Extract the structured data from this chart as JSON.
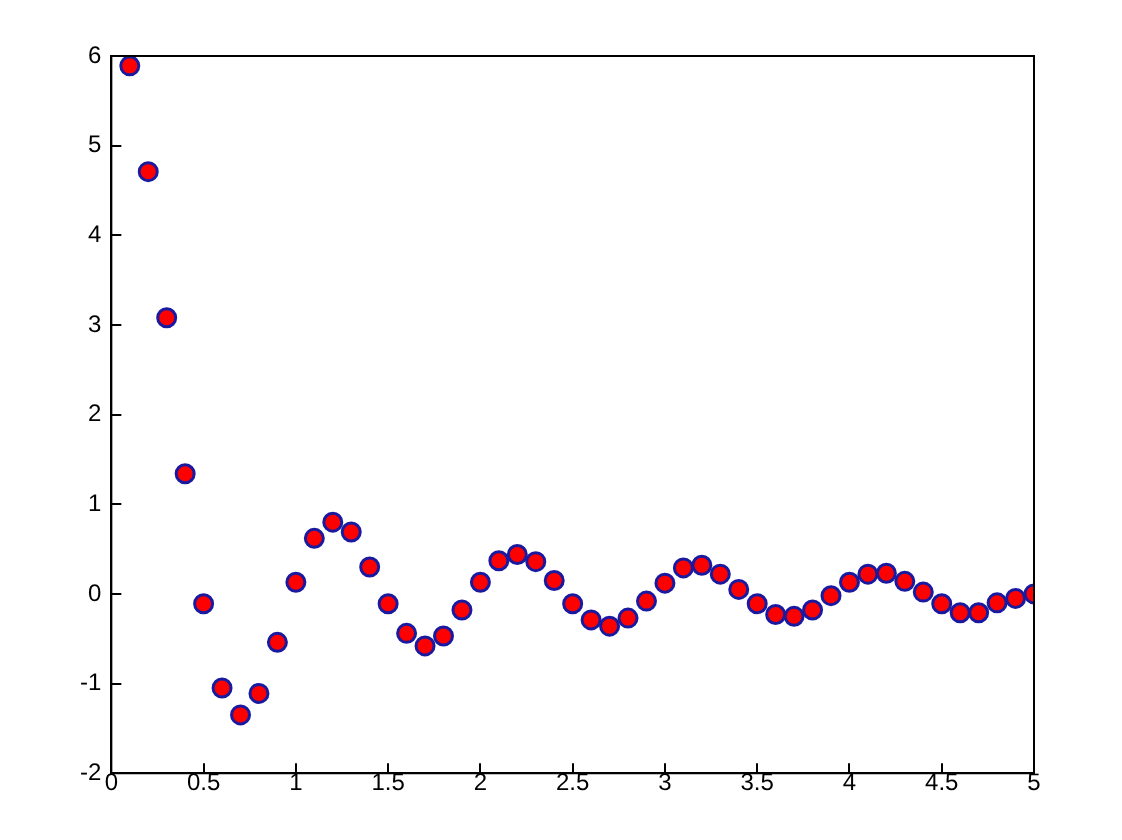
{
  "chart_data": {
    "type": "scatter",
    "x": [
      0.1,
      0.2,
      0.3,
      0.4,
      0.5,
      0.6,
      0.7,
      0.8,
      0.9,
      1.0,
      1.1,
      1.2,
      1.3,
      1.4,
      1.5,
      1.6,
      1.7,
      1.8,
      1.9,
      2.0,
      2.1,
      2.2,
      2.3,
      2.4,
      2.5,
      2.6,
      2.7,
      2.8,
      2.9,
      3.0,
      3.1,
      3.2,
      3.3,
      3.4,
      3.5,
      3.6,
      3.7,
      3.8,
      3.9,
      4.0,
      4.1,
      4.2,
      4.3,
      4.4,
      4.5,
      4.6,
      4.7,
      4.8,
      4.9,
      5.0
    ],
    "series": [
      {
        "color": "#ff0000",
        "values": [
          5.89,
          4.71,
          3.08,
          1.34,
          -0.11,
          -1.05,
          -1.35,
          -1.11,
          -0.54,
          0.13,
          0.62,
          0.8,
          0.69,
          0.3,
          -0.11,
          -0.44,
          -0.58,
          -0.47,
          -0.18,
          0.13,
          0.37,
          0.44,
          0.36,
          0.15,
          -0.11,
          -0.29,
          -0.36,
          -0.27,
          -0.08,
          0.12,
          0.29,
          0.32,
          0.22,
          0.05,
          -0.11,
          -0.23,
          -0.25,
          -0.18,
          -0.02,
          0.13,
          0.22,
          0.23,
          0.14,
          0.02,
          -0.11,
          -0.21,
          -0.21,
          -0.1,
          -0.05,
          0.0
        ]
      }
    ],
    "xlim": [
      0,
      5
    ],
    "xticks": [
      0,
      0.5,
      1,
      1.5,
      2,
      2.5,
      3,
      3.5,
      4,
      4.5,
      5
    ],
    "ylim": [
      -2,
      6
    ],
    "yticks": [
      -2,
      -1,
      0,
      1,
      2,
      3,
      4,
      5,
      6
    ],
    "marker": "circle",
    "grid": false,
    "legend": false
  }
}
